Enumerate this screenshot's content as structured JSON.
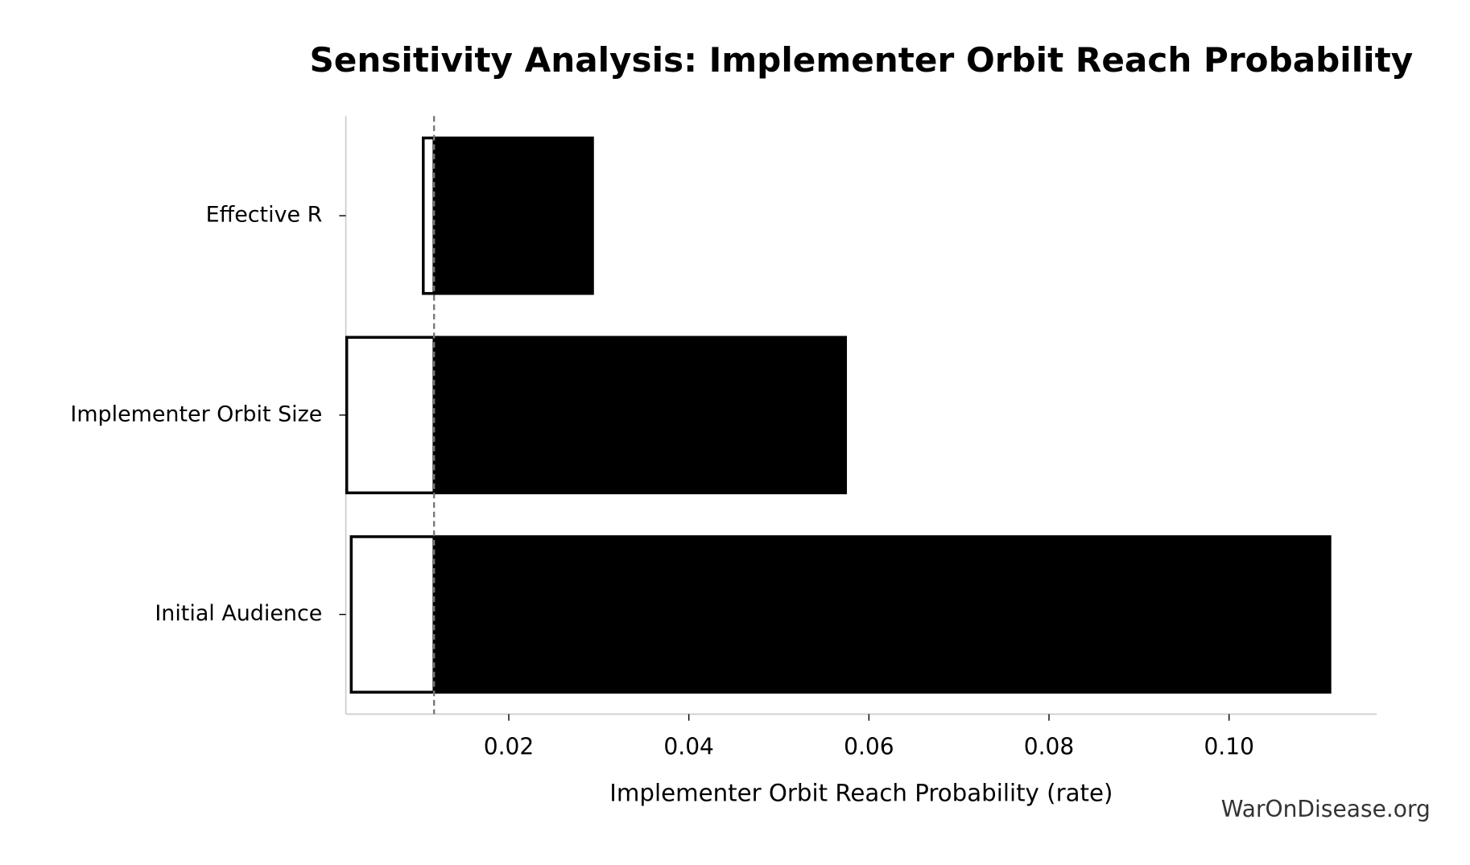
{
  "chart_data": {
    "type": "tornado",
    "title": "Sensitivity Analysis: Implementer Orbit Reach Probability",
    "x_label": "Implementer Orbit Reach Probability (rate)",
    "watermark": "WarOnDisease.org",
    "categories": [
      "Effective R",
      "Implementer Orbit Size",
      "Initial Audience"
    ],
    "baseline": 0.0117,
    "low_values": [
      0.0105,
      0.002,
      0.0025
    ],
    "high_values": [
      0.0293,
      0.0574,
      0.1112
    ],
    "low_color": "#ffffff",
    "high_color": "#000000",
    "xlim": [
      0.0019,
      0.1164
    ],
    "xticks": [
      0.02,
      0.04,
      0.06,
      0.08,
      {
        "value": 0.1,
        "label": "0.10"
      }
    ]
  }
}
